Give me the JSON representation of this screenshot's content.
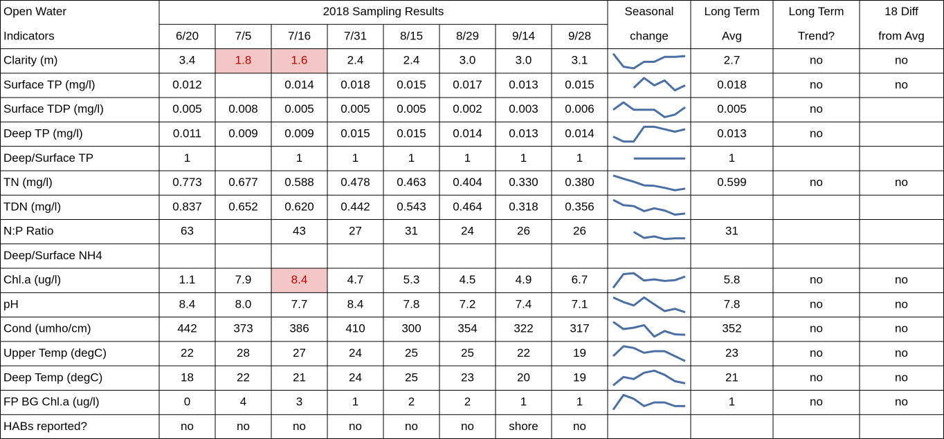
{
  "header": {
    "col1": [
      "Open Water",
      "Indicators"
    ],
    "group": "2018 Sampling Results",
    "dates": [
      "6/20",
      "7/5",
      "7/16",
      "7/31",
      "8/15",
      "8/29",
      "9/14",
      "9/28"
    ],
    "seasonal": [
      "Seasonal",
      "change"
    ],
    "avg": [
      "Long Term",
      "Avg"
    ],
    "trend": [
      "Long Term",
      "Trend?"
    ],
    "diff": [
      "18 Diff",
      "from Avg"
    ]
  },
  "table": {
    "highlight_color": "#f4c7c7",
    "highlight_text_color": "#c00000",
    "sparkline_color": "#4a6fa5",
    "highlighted_cells": [
      {
        "row": 0,
        "col": 1
      },
      {
        "row": 0,
        "col": 2
      },
      {
        "row": 9,
        "col": 2
      }
    ],
    "rows": [
      {
        "label": "Clarity (m)",
        "values": [
          "3.4",
          "1.8",
          "1.6",
          "2.4",
          "2.4",
          "3.0",
          "3.0",
          "3.1"
        ],
        "avg": "2.7",
        "trend": "no",
        "diff": "no"
      },
      {
        "label": "Surface TP (mg/l)",
        "values": [
          "0.012",
          null,
          "0.014",
          "0.018",
          "0.015",
          "0.017",
          "0.013",
          "0.015"
        ],
        "avg": "0.018",
        "trend": "no",
        "diff": "no"
      },
      {
        "label": "Surface TDP (mg/l)",
        "values": [
          "0.005",
          "0.008",
          "0.005",
          "0.005",
          "0.005",
          "0.002",
          "0.003",
          "0.006"
        ],
        "avg": "0.005",
        "trend": "no",
        "diff": null
      },
      {
        "label": "Deep TP (mg/l)",
        "values": [
          "0.011",
          "0.009",
          "0.009",
          "0.015",
          "0.015",
          "0.014",
          "0.013",
          "0.014"
        ],
        "avg": "0.013",
        "trend": "no",
        "diff": null
      },
      {
        "label": "Deep/Surface TP",
        "values": [
          "1",
          null,
          "1",
          "1",
          "1",
          "1",
          "1",
          "1"
        ],
        "avg": "1",
        "trend": null,
        "diff": null
      },
      {
        "label": "TN (mg/l)",
        "values": [
          "0.773",
          "0.677",
          "0.588",
          "0.478",
          "0.463",
          "0.404",
          "0.330",
          "0.380"
        ],
        "avg": "0.599",
        "trend": "no",
        "diff": "no"
      },
      {
        "label": "TDN (mg/l)",
        "values": [
          "0.837",
          "0.652",
          "0.620",
          "0.442",
          "0.543",
          "0.464",
          "0.318",
          "0.356"
        ],
        "avg": null,
        "trend": null,
        "diff": null
      },
      {
        "label": "N:P Ratio",
        "values": [
          "63",
          null,
          "43",
          "27",
          "31",
          "24",
          "26",
          "26"
        ],
        "avg": "31",
        "trend": null,
        "diff": null
      },
      {
        "label": "Deep/Surface NH4",
        "values": [
          null,
          null,
          null,
          null,
          null,
          null,
          null,
          null
        ],
        "avg": null,
        "trend": null,
        "diff": null
      },
      {
        "label": "Chl.a (ug/l)",
        "values": [
          "1.1",
          "7.9",
          "8.4",
          "4.7",
          "5.3",
          "4.5",
          "4.9",
          "6.7"
        ],
        "avg": "5.8",
        "trend": "no",
        "diff": "no"
      },
      {
        "label": "pH",
        "values": [
          "8.4",
          "8.0",
          "7.7",
          "8.4",
          "7.8",
          "7.2",
          "7.4",
          "7.1"
        ],
        "avg": "7.8",
        "trend": "no",
        "diff": "no"
      },
      {
        "label": "Cond (umho/cm)",
        "values": [
          "442",
          "373",
          "386",
          "410",
          "300",
          "354",
          "322",
          "317"
        ],
        "avg": "352",
        "trend": "no",
        "diff": "no"
      },
      {
        "label": "Upper Temp (degC)",
        "values": [
          "22",
          "28",
          "27",
          "24",
          "25",
          "25",
          "22",
          "19"
        ],
        "avg": "23",
        "trend": "no",
        "diff": "no"
      },
      {
        "label": "Deep Temp (degC)",
        "values": [
          "18",
          "22",
          "21",
          "24",
          "25",
          "23",
          "20",
          "19"
        ],
        "avg": "21",
        "trend": "no",
        "diff": "no"
      },
      {
        "label": "FP BG Chl.a (ug/l)",
        "values": [
          "0",
          "4",
          "3",
          "1",
          "2",
          "2",
          "1",
          "1"
        ],
        "avg": "1",
        "trend": "no",
        "diff": "no"
      },
      {
        "label": "HABs reported?",
        "values": [
          "no",
          "no",
          "no",
          "no",
          "no",
          "no",
          "shore",
          "no"
        ],
        "avg": null,
        "trend": null,
        "diff": null
      }
    ]
  }
}
